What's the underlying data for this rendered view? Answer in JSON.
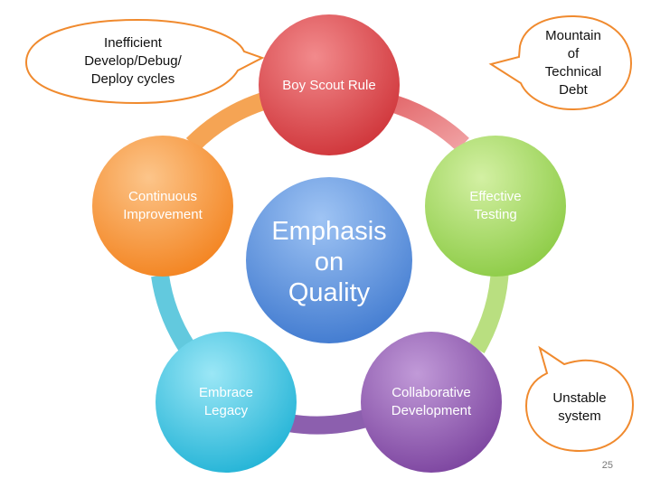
{
  "diagram": {
    "center": {
      "label": "Emphasis\non\nQuality",
      "color": "#4a86d6"
    },
    "nodes": [
      {
        "id": "boy-scout-rule",
        "label": "Boy Scout Rule",
        "color": "#d8464a"
      },
      {
        "id": "effective-testing",
        "label": "Effective\nTesting",
        "color": "#9bd156"
      },
      {
        "id": "collaborative-development",
        "label": "Collaborative\nDevelopment",
        "color": "#8a52ad"
      },
      {
        "id": "embrace-legacy",
        "label": "Embrace\nLegacy",
        "color": "#35c0df"
      },
      {
        "id": "continuous-improvement",
        "label": "Continuous\nImprovement",
        "color": "#f79032"
      }
    ],
    "callouts": [
      {
        "id": "inefficient-cycles",
        "label": "Inefficient\nDevelop/Debug/\nDeploy cycles",
        "border_color": "#f08a2e"
      },
      {
        "id": "technical-debt",
        "label": "Mountain\nof\nTechnical\nDebt",
        "border_color": "#f08a2e"
      },
      {
        "id": "unstable-system",
        "label": "Unstable\nsystem",
        "border_color": "#f08a2e"
      }
    ]
  },
  "slide_number": "25"
}
